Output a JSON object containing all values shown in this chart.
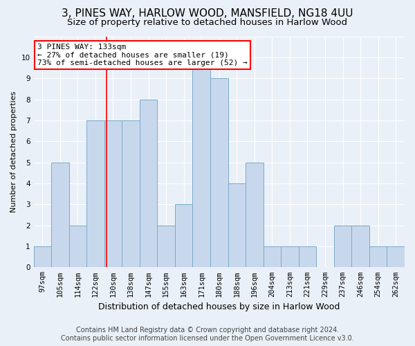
{
  "title1": "3, PINES WAY, HARLOW WOOD, MANSFIELD, NG18 4UU",
  "title2": "Size of property relative to detached houses in Harlow Wood",
  "xlabel": "Distribution of detached houses by size in Harlow Wood",
  "ylabel": "Number of detached properties",
  "bins": [
    "97sqm",
    "105sqm",
    "114sqm",
    "122sqm",
    "130sqm",
    "138sqm",
    "147sqm",
    "155sqm",
    "163sqm",
    "171sqm",
    "180sqm",
    "188sqm",
    "196sqm",
    "204sqm",
    "213sqm",
    "221sqm",
    "229sqm",
    "237sqm",
    "246sqm",
    "254sqm",
    "262sqm"
  ],
  "values": [
    1,
    5,
    2,
    7,
    7,
    7,
    8,
    2,
    3,
    10,
    9,
    4,
    5,
    1,
    1,
    1,
    0,
    2,
    2,
    1,
    1
  ],
  "bar_color": "#c8d8ec",
  "bar_edge_color": "#7aaac8",
  "annotation_text": "3 PINES WAY: 133sqm\n← 27% of detached houses are smaller (19)\n73% of semi-detached houses are larger (52) →",
  "annotation_box_color": "white",
  "annotation_box_edge": "red",
  "vline_color": "red",
  "vline_x": 3.62,
  "ylim": [
    0,
    11
  ],
  "yticks": [
    0,
    1,
    2,
    3,
    4,
    5,
    6,
    7,
    8,
    9,
    10,
    11
  ],
  "footer1": "Contains HM Land Registry data © Crown copyright and database right 2024.",
  "footer2": "Contains public sector information licensed under the Open Government Licence v3.0.",
  "bg_color": "#eaf0f8",
  "plot_bg_color": "#eaf0f8",
  "grid_color": "#ffffff",
  "title1_fontsize": 11,
  "title2_fontsize": 9.5,
  "xlabel_fontsize": 9,
  "ylabel_fontsize": 8,
  "tick_fontsize": 7.5,
  "annotation_fontsize": 8,
  "footer_fontsize": 7
}
